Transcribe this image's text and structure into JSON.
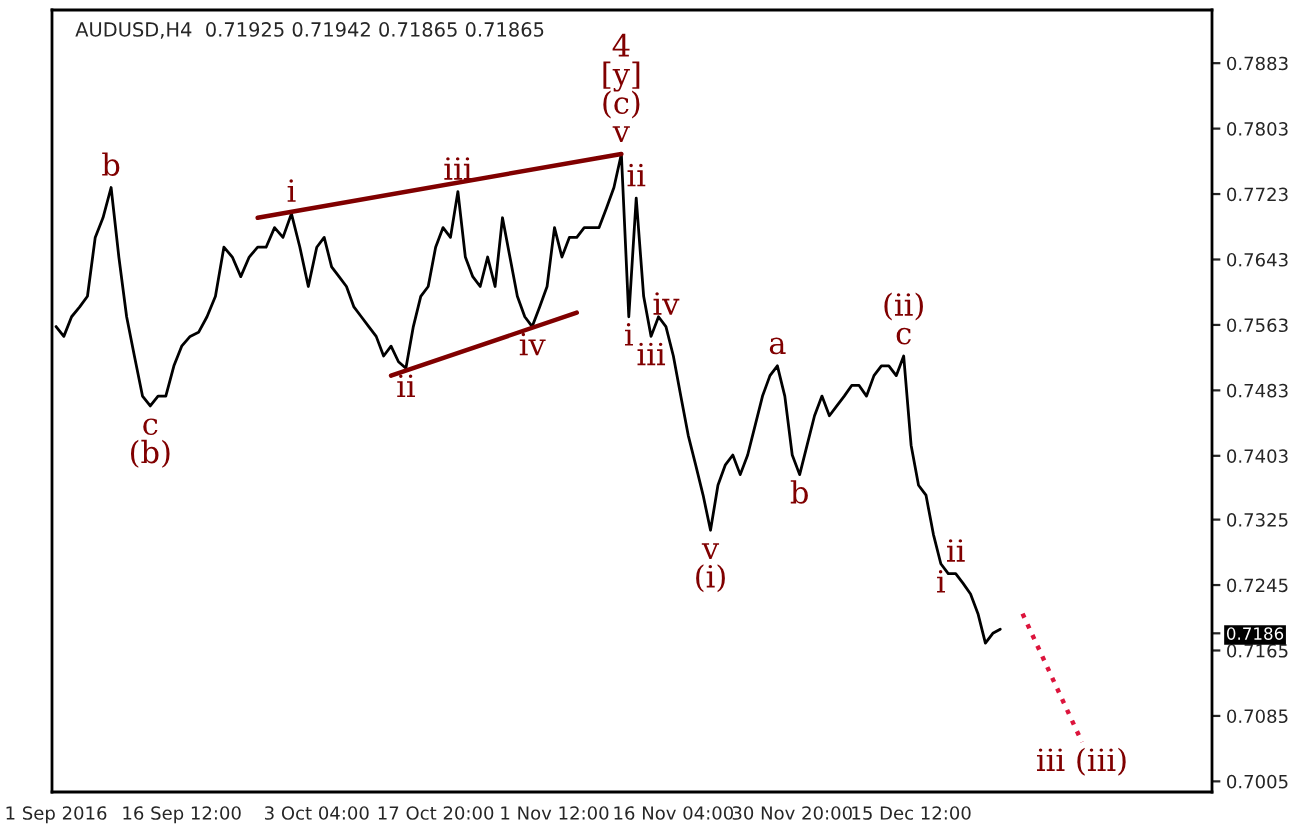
{
  "chart_data": {
    "type": "line",
    "title": "AUDUSD,H4  0.71925 0.71942 0.71865 0.71865",
    "xlim": [
      "2016-08-31T12:00",
      "2017-01-21T15:00"
    ],
    "xticks": [
      {
        "value": "2016-09-01T00:00",
        "label": "1 Sep 2016"
      },
      {
        "value": "2016-09-16T12:00",
        "label": "16 Sep 12:00"
      },
      {
        "value": "2016-10-03T04:00",
        "label": "3 Oct 04:00"
      },
      {
        "value": "2016-10-17T20:00",
        "label": "17 Oct 20:00"
      },
      {
        "value": "2016-11-01T12:00",
        "label": "1 Nov 12:00"
      },
      {
        "value": "2016-11-16T04:00",
        "label": "16 Nov 04:00"
      },
      {
        "value": "2016-11-30T20:00",
        "label": "30 Nov 20:00"
      },
      {
        "value": "2016-12-15T12:00",
        "label": "15 Dec 12:00"
      }
    ],
    "ylim": [
      0.6992,
      0.7948
    ],
    "yticks": [
      0.7005,
      0.7085,
      0.7165,
      {
        "value": 0.7186,
        "label": "0.7186"
      },
      0.7245,
      0.7325,
      0.7403,
      0.7483,
      0.7563,
      0.7643,
      0.7723,
      0.7803,
      0.7883
    ],
    "x": [
      "2016-09-01T00:00",
      "2016-09-01T23:00",
      "2016-09-02T22:00",
      "2016-09-03T22:00",
      "2016-09-04T21:00",
      "2016-09-05T20:00",
      "2016-09-06T19:00",
      "2016-09-07T19:00",
      "2016-09-08T18:00",
      "2016-09-09T17:00",
      "2016-09-10T16:00",
      "2016-09-11T16:00",
      "2016-09-12T15:00",
      "2016-09-13T14:00",
      "2016-09-14T13:00",
      "2016-09-15T13:00",
      "2016-09-16T12:00",
      "2016-09-17T13:00",
      "2016-09-18T14:00",
      "2016-09-19T15:00",
      "2016-09-20T16:00",
      "2016-09-21T17:00",
      "2016-09-22T18:00",
      "2016-09-23T19:00",
      "2016-09-24T20:00",
      "2016-09-25T21:00",
      "2016-09-26T22:00",
      "2016-09-27T23:00",
      "2016-09-29T00:00",
      "2016-09-30T01:00",
      "2016-10-01T02:00",
      "2016-10-02T03:00",
      "2016-10-03T04:00",
      "2016-10-04T02:00",
      "2016-10-05T00:00",
      "2016-10-05T22:00",
      "2016-10-06T20:00",
      "2016-10-07T18:00",
      "2016-10-08T16:00",
      "2016-10-09T14:00",
      "2016-10-10T12:00",
      "2016-10-11T10:00",
      "2016-10-12T08:00",
      "2016-10-13T06:00",
      "2016-10-14T04:00",
      "2016-10-15T02:00",
      "2016-10-16T00:00",
      "2016-10-16T22:00",
      "2016-10-17T20:00",
      "2016-10-18T18:00",
      "2016-10-19T16:00",
      "2016-10-20T14:00",
      "2016-10-21T12:00",
      "2016-10-22T10:00",
      "2016-10-23T08:00",
      "2016-10-24T06:00",
      "2016-10-25T04:00",
      "2016-10-26T02:00",
      "2016-10-27T00:00",
      "2016-10-27T22:00",
      "2016-10-28T20:00",
      "2016-10-29T18:00",
      "2016-10-30T16:00",
      "2016-10-31T14:00",
      "2016-11-01T12:00",
      "2016-11-02T10:00",
      "2016-11-03T08:00",
      "2016-11-04T06:00",
      "2016-11-05T04:00",
      "2016-11-06T02:00",
      "2016-11-07T00:00",
      "2016-11-07T22:00",
      "2016-11-08T20:00",
      "2016-11-09T18:00",
      "2016-11-10T16:00",
      "2016-11-11T14:00",
      "2016-11-12T12:00",
      "2016-11-13T10:00",
      "2016-11-14T08:00",
      "2016-11-15T06:00",
      "2016-11-16T04:00",
      "2016-11-17T02:00",
      "2016-11-18T00:00",
      "2016-11-18T22:00",
      "2016-11-19T20:00",
      "2016-11-20T18:00",
      "2016-11-21T16:00",
      "2016-11-22T14:00",
      "2016-11-23T12:00",
      "2016-11-24T10:00",
      "2016-11-25T08:00",
      "2016-11-26T06:00",
      "2016-11-27T04:00",
      "2016-11-28T02:00",
      "2016-11-29T00:00",
      "2016-11-29T22:00",
      "2016-11-30T20:00",
      "2016-12-01T18:00",
      "2016-12-02T16:00",
      "2016-12-03T14:00",
      "2016-12-04T12:00",
      "2016-12-05T10:00",
      "2016-12-06T08:00",
      "2016-12-07T06:00",
      "2016-12-08T04:00",
      "2016-12-09T02:00",
      "2016-12-10T00:00",
      "2016-12-10T22:00",
      "2016-12-11T20:00",
      "2016-12-12T18:00",
      "2016-12-13T16:00",
      "2016-12-14T14:00",
      "2016-12-15T12:00",
      "2016-12-16T10:00",
      "2016-12-17T08:00",
      "2016-12-18T06:00",
      "2016-12-19T04:00",
      "2016-12-20T02:00",
      "2016-12-21T00:00",
      "2016-12-21T22:00",
      "2016-12-22T20:00",
      "2016-12-23T18:00",
      "2016-12-24T16:00",
      "2016-12-25T14:00",
      "2016-12-26T12:00"
    ],
    "series": [
      {
        "color": "#000000",
        "line_style": "solid",
        "values": [
          0.7561,
          0.7549,
          0.7573,
          0.7585,
          0.7598,
          0.767,
          0.7694,
          0.7731,
          0.7646,
          0.7573,
          0.7525,
          0.7476,
          0.7464,
          0.7476,
          0.7476,
          0.7513,
          0.7537,
          0.7549,
          0.7554,
          0.7573,
          0.7598,
          0.7658,
          0.7646,
          0.7622,
          0.7646,
          0.7658,
          0.7658,
          0.7682,
          0.767,
          0.7699,
          0.7658,
          0.761,
          0.7658,
          0.767,
          0.7634,
          0.7622,
          0.761,
          0.7585,
          0.7573,
          0.7561,
          0.7549,
          0.7525,
          0.7537,
          0.7518,
          0.751,
          0.7561,
          0.7598,
          0.761,
          0.7658,
          0.7682,
          0.767,
          0.7726,
          0.7646,
          0.7622,
          0.761,
          0.7646,
          0.761,
          0.7694,
          0.7646,
          0.7598,
          0.7573,
          0.7561,
          0.7585,
          0.761,
          0.7682,
          0.7646,
          0.767,
          0.767,
          0.7682,
          0.7682,
          0.7682,
          0.7706,
          0.7731,
          0.7772,
          0.7573,
          0.7718,
          0.7598,
          0.7549,
          0.7573,
          0.7561,
          0.7525,
          0.7476,
          0.7428,
          0.7392,
          0.7355,
          0.7312,
          0.7367,
          0.7392,
          0.7404,
          0.738,
          0.7404,
          0.744,
          0.7476,
          0.7501,
          0.7513,
          0.7476,
          0.7404,
          0.738,
          0.7416,
          0.7452,
          0.7476,
          0.7452,
          0.7464,
          0.7476,
          0.7489,
          0.7489,
          0.7476,
          0.7501,
          0.7513,
          0.7513,
          0.7501,
          0.7525,
          0.7416,
          0.7367,
          0.7355,
          0.7307,
          0.7271,
          0.7259,
          0.7259,
          0.7247,
          0.7234,
          0.721,
          0.7174,
          0.7186,
          0.7191
        ]
      },
      {
        "color": "#800000",
        "line_style": "solid",
        "x": [
          "2016-09-25T21:00",
          "2016-11-09T18:00"
        ],
        "values": [
          0.7694,
          0.7772
        ]
      },
      {
        "color": "#800000",
        "line_style": "solid",
        "x": [
          "2016-10-12T08:00",
          "2016-11-04T06:00"
        ],
        "values": [
          0.7501,
          0.7578
        ]
      },
      {
        "color": "#dc143c",
        "line_style": "dotted",
        "x": [
          "2016-12-29T06:00",
          "2017-01-05T14:00"
        ],
        "values": [
          0.721,
          0.7053
        ]
      }
    ],
    "annotations": [
      {
        "text": "b",
        "x": "2016-09-07T19:00",
        "y": 0.7731
      },
      {
        "text": "c\n(b)",
        "x": "2016-09-12T15:00",
        "y": 0.7464
      },
      {
        "text": "i",
        "x": "2016-09-30T01:00",
        "y": 0.7699
      },
      {
        "text": "ii",
        "x": "2016-10-14T04:00",
        "y": 0.751
      },
      {
        "text": "iii",
        "x": "2016-10-20T14:00",
        "y": 0.7726
      },
      {
        "text": "iv",
        "x": "2016-10-29T18:00",
        "y": 0.7561
      },
      {
        "text": "4\n[y]\n(c)\nv",
        "x": "2016-11-09T18:00",
        "y": 0.7772
      },
      {
        "text": "i",
        "x": "2016-11-10T16:00",
        "y": 0.7573
      },
      {
        "text": "ii",
        "x": "2016-11-11T14:00",
        "y": 0.7718
      },
      {
        "text": "iii",
        "x": "2016-11-13T10:00",
        "y": 0.7549
      },
      {
        "text": "iv",
        "x": "2016-11-15T06:00",
        "y": 0.7561
      },
      {
        "text": "v\n(i)",
        "x": "2016-11-20T18:00",
        "y": 0.7312
      },
      {
        "text": "a",
        "x": "2016-11-29T00:00",
        "y": 0.7513
      },
      {
        "text": "b",
        "x": "2016-12-01T18:00",
        "y": 0.738
      },
      {
        "text": "(ii)\nc",
        "x": "2016-12-14T14:00",
        "y": 0.7525
      },
      {
        "text": "i",
        "x": "2016-12-19T04:00",
        "y": 0.7271
      },
      {
        "text": "ii",
        "x": "2016-12-21T00:00",
        "y": 0.7259
      },
      {
        "text": "iii (iii)",
        "x": "2017-01-05T14:00",
        "y": 0.7053
      }
    ]
  }
}
